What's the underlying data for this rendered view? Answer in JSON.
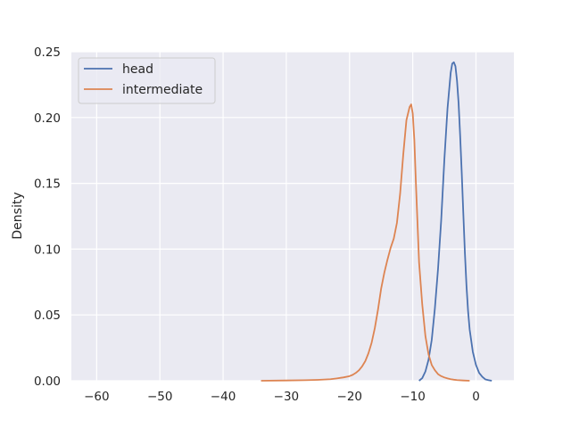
{
  "chart_data": {
    "type": "line",
    "title": "",
    "xlabel": "",
    "ylabel": "Density",
    "xlim": [
      -64.0,
      6.0
    ],
    "ylim": [
      0.0,
      0.25
    ],
    "xticks": [
      -60,
      -50,
      -40,
      -30,
      -20,
      -10,
      0
    ],
    "xtick_labels": [
      "−60",
      "−50",
      "−40",
      "−30",
      "−20",
      "−10",
      "0"
    ],
    "yticks": [
      0.0,
      0.05,
      0.1,
      0.15,
      0.2,
      0.25
    ],
    "ytick_labels": [
      "0.00",
      "0.05",
      "0.10",
      "0.15",
      "0.20",
      "0.25"
    ],
    "grid": true,
    "legend_position": "top-left",
    "background": "#eaeaf2",
    "series": [
      {
        "name": "head",
        "color": "#4c72b0",
        "x": [
          -9,
          -8.5,
          -8,
          -7.5,
          -7,
          -6.5,
          -6,
          -5.5,
          -5,
          -4.5,
          -4,
          -3.75,
          -3.5,
          -3.25,
          -3,
          -2.75,
          -2.5,
          -2.25,
          -2,
          -1.75,
          -1.5,
          -1.25,
          -1,
          -0.5,
          0,
          0.5,
          1,
          1.5,
          2,
          2.5
        ],
        "y": [
          0.0,
          0.002,
          0.007,
          0.016,
          0.031,
          0.055,
          0.085,
          0.122,
          0.168,
          0.207,
          0.234,
          0.241,
          0.242,
          0.239,
          0.228,
          0.211,
          0.186,
          0.158,
          0.127,
          0.097,
          0.072,
          0.053,
          0.039,
          0.022,
          0.012,
          0.006,
          0.003,
          0.001,
          0.0004,
          0.0
        ]
      },
      {
        "name": "intermediate",
        "color": "#dd8452",
        "x": [
          -34,
          -30,
          -27,
          -25,
          -23,
          -22,
          -21,
          -20,
          -19.5,
          -19,
          -18.5,
          -18,
          -17.5,
          -17,
          -16.5,
          -16,
          -15.5,
          -15,
          -14.5,
          -14,
          -13.5,
          -13,
          -12.5,
          -12,
          -11.5,
          -11,
          -10.5,
          -10.25,
          -10,
          -9.75,
          -9.5,
          -9.25,
          -9,
          -8.5,
          -8,
          -7.5,
          -7,
          -6.5,
          -6,
          -5.5,
          -5,
          -4.5,
          -4,
          -3.5,
          -3,
          -2,
          -1
        ],
        "y": [
          0.0,
          0.0002,
          0.0004,
          0.0007,
          0.0012,
          0.0018,
          0.0025,
          0.0035,
          0.0045,
          0.006,
          0.008,
          0.011,
          0.015,
          0.021,
          0.029,
          0.04,
          0.054,
          0.07,
          0.082,
          0.092,
          0.101,
          0.108,
          0.12,
          0.142,
          0.172,
          0.198,
          0.208,
          0.21,
          0.203,
          0.183,
          0.15,
          0.12,
          0.09,
          0.058,
          0.034,
          0.02,
          0.012,
          0.008,
          0.005,
          0.0035,
          0.0025,
          0.0018,
          0.0012,
          0.0008,
          0.0005,
          0.0002,
          0.0
        ]
      }
    ]
  }
}
